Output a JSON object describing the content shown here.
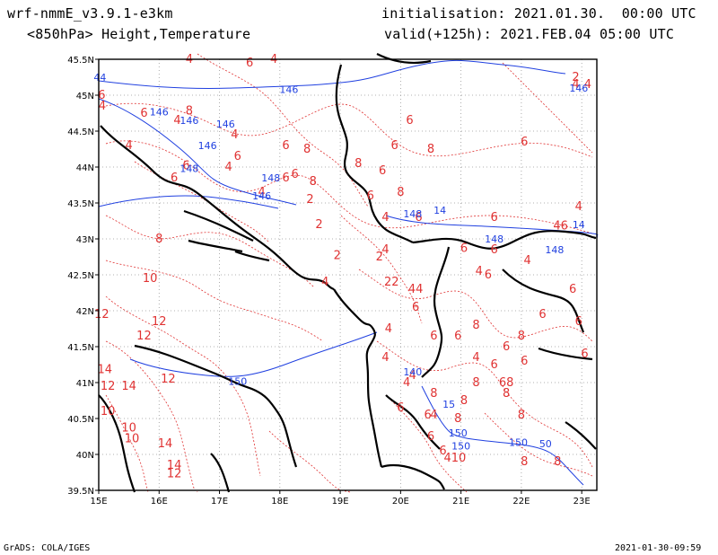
{
  "header": {
    "model": "wrf-nmmE_v3.9.1-e3km",
    "field": "<850hPa> Height,Temperature",
    "init": "initialisation: 2021.01.30.  00:00 UTC",
    "valid": "valid(+125h): 2021.FEB.04 05:00 UTC"
  },
  "footer": {
    "credit": "GrADS: COLA/IGES",
    "timestamp": "2021-01-30-09:59"
  },
  "map": {
    "lon_ticks": [
      "15E",
      "16E",
      "17E",
      "18E",
      "19E",
      "20E",
      "21E",
      "22E",
      "23E"
    ],
    "lat_ticks": [
      "45.5N",
      "45N",
      "44.5N",
      "44N",
      "43.5N",
      "43N",
      "42.5N",
      "42N",
      "41.5N",
      "41N",
      "40.5N",
      "40N",
      "39.5N"
    ],
    "lon_range": [
      15,
      23.25
    ],
    "lat_range": [
      39.5,
      45.5
    ],
    "grid": "dotted",
    "temperature_color": "#e03232",
    "height_color": "#2040e0",
    "coast_color": "#000000",
    "temperature_labels": [
      {
        "text": "4",
        "lon": 15.06,
        "lat": 44.8
      },
      {
        "text": "4",
        "lon": 15.5,
        "lat": 44.25
      },
      {
        "text": "6",
        "lon": 15.75,
        "lat": 44.7
      },
      {
        "text": "8",
        "lon": 16.5,
        "lat": 44.73
      },
      {
        "text": "4",
        "lon": 16.3,
        "lat": 44.6
      },
      {
        "text": "4",
        "lon": 17.25,
        "lat": 44.4
      },
      {
        "text": "6",
        "lon": 17.3,
        "lat": 44.1
      },
      {
        "text": "4",
        "lon": 17.15,
        "lat": 43.95
      },
      {
        "text": "6",
        "lon": 16.45,
        "lat": 43.97
      },
      {
        "text": "6",
        "lon": 16.25,
        "lat": 43.8
      },
      {
        "text": "6",
        "lon": 18.1,
        "lat": 44.25
      },
      {
        "text": "8",
        "lon": 18.45,
        "lat": 44.2
      },
      {
        "text": "6",
        "lon": 18.1,
        "lat": 43.8
      },
      {
        "text": "8",
        "lon": 18.55,
        "lat": 43.75
      },
      {
        "text": "4",
        "lon": 17.7,
        "lat": 43.6
      },
      {
        "text": "8",
        "lon": 19.3,
        "lat": 44.0
      },
      {
        "text": "6",
        "lon": 19.7,
        "lat": 43.9
      },
      {
        "text": "6",
        "lon": 19.5,
        "lat": 43.55
      },
      {
        "text": "8",
        "lon": 20.0,
        "lat": 43.6
      },
      {
        "text": "4",
        "lon": 19.75,
        "lat": 43.25
      },
      {
        "text": "6",
        "lon": 20.3,
        "lat": 43.25
      },
      {
        "text": "6",
        "lon": 21.55,
        "lat": 43.25
      },
      {
        "text": "46",
        "lon": 22.65,
        "lat": 43.13
      },
      {
        "text": "4",
        "lon": 22.95,
        "lat": 43.4
      },
      {
        "text": "8",
        "lon": 16.0,
        "lat": 42.95
      },
      {
        "text": "10",
        "lon": 15.85,
        "lat": 42.4
      },
      {
        "text": "12",
        "lon": 16.0,
        "lat": 41.8
      },
      {
        "text": "12",
        "lon": 15.75,
        "lat": 41.6
      },
      {
        "text": "12",
        "lon": 15.05,
        "lat": 41.9
      },
      {
        "text": "14",
        "lon": 15.1,
        "lat": 41.13
      },
      {
        "text": "12",
        "lon": 15.15,
        "lat": 40.9
      },
      {
        "text": "14",
        "lon": 15.5,
        "lat": 40.9
      },
      {
        "text": "12",
        "lon": 16.15,
        "lat": 41.0
      },
      {
        "text": "10",
        "lon": 15.15,
        "lat": 40.55
      },
      {
        "text": "10",
        "lon": 15.5,
        "lat": 40.32
      },
      {
        "text": "10",
        "lon": 15.55,
        "lat": 40.17
      },
      {
        "text": "14",
        "lon": 16.1,
        "lat": 40.1
      },
      {
        "text": "14",
        "lon": 16.25,
        "lat": 39.8
      },
      {
        "text": "12",
        "lon": 16.25,
        "lat": 39.68
      },
      {
        "text": "6",
        "lon": 18.25,
        "lat": 43.85
      },
      {
        "text": "2",
        "lon": 18.5,
        "lat": 43.5
      },
      {
        "text": "2",
        "lon": 18.65,
        "lat": 43.15
      },
      {
        "text": "2",
        "lon": 18.95,
        "lat": 42.72
      },
      {
        "text": "4",
        "lon": 18.75,
        "lat": 42.35
      },
      {
        "text": "2",
        "lon": 19.65,
        "lat": 42.7
      },
      {
        "text": "4",
        "lon": 19.75,
        "lat": 42.8
      },
      {
        "text": "22",
        "lon": 19.85,
        "lat": 42.35
      },
      {
        "text": "44",
        "lon": 20.25,
        "lat": 42.25
      },
      {
        "text": "6",
        "lon": 20.25,
        "lat": 42.0
      },
      {
        "text": "4",
        "lon": 19.8,
        "lat": 41.7
      },
      {
        "text": "4",
        "lon": 19.75,
        "lat": 41.3
      },
      {
        "text": "6",
        "lon": 20.55,
        "lat": 41.6
      },
      {
        "text": "6",
        "lon": 20.95,
        "lat": 41.6
      },
      {
        "text": "8",
        "lon": 21.25,
        "lat": 41.75
      },
      {
        "text": "6",
        "lon": 21.75,
        "lat": 41.45
      },
      {
        "text": "4",
        "lon": 21.25,
        "lat": 41.3
      },
      {
        "text": "6",
        "lon": 21.55,
        "lat": 41.2
      },
      {
        "text": "6",
        "lon": 22.05,
        "lat": 41.25
      },
      {
        "text": "8",
        "lon": 22.0,
        "lat": 41.6
      },
      {
        "text": "6",
        "lon": 22.95,
        "lat": 41.8
      },
      {
        "text": "6",
        "lon": 23.05,
        "lat": 41.35
      },
      {
        "text": "6",
        "lon": 22.35,
        "lat": 41.9
      },
      {
        "text": "6",
        "lon": 22.85,
        "lat": 42.25
      },
      {
        "text": "4",
        "lon": 21.3,
        "lat": 42.5
      },
      {
        "text": "6",
        "lon": 21.05,
        "lat": 42.82
      },
      {
        "text": "6",
        "lon": 21.55,
        "lat": 42.8
      },
      {
        "text": "4",
        "lon": 22.1,
        "lat": 42.65
      },
      {
        "text": "6",
        "lon": 21.45,
        "lat": 42.45
      },
      {
        "text": "4",
        "lon": 20.1,
        "lat": 40.95
      },
      {
        "text": "4",
        "lon": 20.2,
        "lat": 41.05
      },
      {
        "text": "8",
        "lon": 21.25,
        "lat": 40.95
      },
      {
        "text": "68",
        "lon": 21.75,
        "lat": 40.95
      },
      {
        "text": "8",
        "lon": 20.55,
        "lat": 40.8
      },
      {
        "text": "8",
        "lon": 21.05,
        "lat": 40.7
      },
      {
        "text": "6",
        "lon": 20.45,
        "lat": 40.5
      },
      {
        "text": "6",
        "lon": 20.0,
        "lat": 40.6
      },
      {
        "text": "4",
        "lon": 20.55,
        "lat": 40.5
      },
      {
        "text": "8",
        "lon": 20.95,
        "lat": 40.45
      },
      {
        "text": "8",
        "lon": 21.75,
        "lat": 40.8
      },
      {
        "text": "8",
        "lon": 22.0,
        "lat": 40.5
      },
      {
        "text": "6",
        "lon": 20.5,
        "lat": 40.2
      },
      {
        "text": "6",
        "lon": 20.7,
        "lat": 40.0
      },
      {
        "text": "410",
        "lon": 20.9,
        "lat": 39.9
      },
      {
        "text": "8",
        "lon": 22.05,
        "lat": 39.85
      },
      {
        "text": "8",
        "lon": 22.6,
        "lat": 39.85
      },
      {
        "text": "6",
        "lon": 15.05,
        "lat": 44.95
      },
      {
        "text": "4",
        "lon": 16.5,
        "lat": 45.45
      },
      {
        "text": "4",
        "lon": 17.9,
        "lat": 45.45
      },
      {
        "text": "4",
        "lon": 22.9,
        "lat": 45.1
      },
      {
        "text": "2",
        "lon": 22.9,
        "lat": 45.2
      },
      {
        "text": "4",
        "lon": 23.1,
        "lat": 45.1
      },
      {
        "text": "6",
        "lon": 17.5,
        "lat": 45.4
      },
      {
        "text": "6",
        "lon": 22.05,
        "lat": 44.3
      },
      {
        "text": "6",
        "lon": 20.15,
        "lat": 44.6
      },
      {
        "text": "8",
        "lon": 20.5,
        "lat": 44.2
      },
      {
        "text": "6",
        "lon": 19.9,
        "lat": 44.25
      }
    ],
    "height_labels": [
      {
        "text": "44",
        "lon": 15.02,
        "lat": 45.2
      },
      {
        "text": "146",
        "lon": 18.15,
        "lat": 45.03
      },
      {
        "text": "146",
        "lon": 22.95,
        "lat": 45.05
      },
      {
        "text": "146",
        "lon": 16.5,
        "lat": 44.6
      },
      {
        "text": "146",
        "lon": 17.1,
        "lat": 44.55
      },
      {
        "text": "146",
        "lon": 16.8,
        "lat": 44.25
      },
      {
        "text": "148",
        "lon": 16.5,
        "lat": 43.93
      },
      {
        "text": "148",
        "lon": 17.85,
        "lat": 43.8
      },
      {
        "text": "146",
        "lon": 17.7,
        "lat": 43.55
      },
      {
        "text": "148",
        "lon": 20.2,
        "lat": 43.3
      },
      {
        "text": "14",
        "lon": 20.65,
        "lat": 43.35
      },
      {
        "text": "148",
        "lon": 21.55,
        "lat": 42.95
      },
      {
        "text": "148",
        "lon": 22.55,
        "lat": 42.8
      },
      {
        "text": "14",
        "lon": 22.95,
        "lat": 43.15
      },
      {
        "text": "140",
        "lon": 20.2,
        "lat": 41.1
      },
      {
        "text": "150",
        "lon": 17.3,
        "lat": 40.97
      },
      {
        "text": "15",
        "lon": 20.8,
        "lat": 40.65
      },
      {
        "text": "150",
        "lon": 20.95,
        "lat": 40.25
      },
      {
        "text": "150",
        "lon": 21.0,
        "lat": 40.07
      },
      {
        "text": "150",
        "lon": 21.95,
        "lat": 40.12
      },
      {
        "text": "50",
        "lon": 22.4,
        "lat": 40.1
      },
      {
        "text": "146",
        "lon": 16.0,
        "lat": 44.72
      }
    ]
  }
}
